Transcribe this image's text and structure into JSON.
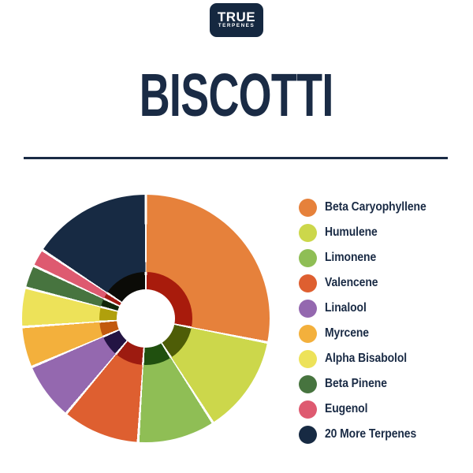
{
  "brand": {
    "logo_line1": "TRUE",
    "logo_line2": "TERPENES",
    "logo_bg": "#152840",
    "logo_fg": "#FFFFFF"
  },
  "title": "BISCOTTI",
  "colors": {
    "navy_text": "#1A2B45",
    "background": "#FFFFFF",
    "divider": "#1A2B45",
    "separator": "#FFFFFF"
  },
  "chart_data": {
    "type": "pie",
    "title": "BISCOTTI",
    "donut": true,
    "start_angle_deg": 0,
    "direction": "clockwise",
    "legend_position": "right",
    "note": "Donut with darker inner ring per segment and white center hole; percents estimated from arc angles",
    "segments": [
      {
        "label": "Beta Caryophyllene",
        "percent": 28.1,
        "color": "#E6813B",
        "inner_color": "#A81B0C"
      },
      {
        "label": "Humulene",
        "percent": 12.8,
        "color": "#CCD74B",
        "inner_color": "#4E5D07"
      },
      {
        "label": "Limonene",
        "percent": 10.1,
        "color": "#8FBE55",
        "inner_color": "#20500F"
      },
      {
        "label": "Valencene",
        "percent": 10.1,
        "color": "#DE5F30",
        "inner_color": "#9D1B10"
      },
      {
        "label": "Linalool",
        "percent": 7.5,
        "color": "#9468AF",
        "inner_color": "#231443"
      },
      {
        "label": "Myrcene",
        "percent": 5.3,
        "color": "#F3B03C",
        "inner_color": "#C2590E"
      },
      {
        "label": "Alpha Bisabolol",
        "percent": 5.1,
        "color": "#EDE259",
        "inner_color": "#B0A00C"
      },
      {
        "label": "Beta Pinene",
        "percent": 3.0,
        "color": "#47743F",
        "inner_color": "#11270A"
      },
      {
        "label": "Eugenol",
        "percent": 2.3,
        "color": "#DE5A70",
        "inner_color": "#A01A13"
      },
      {
        "label": "20 More Terpenes",
        "percent": 15.7,
        "color": "#172A43",
        "inner_color": "#0B0B07"
      }
    ]
  }
}
